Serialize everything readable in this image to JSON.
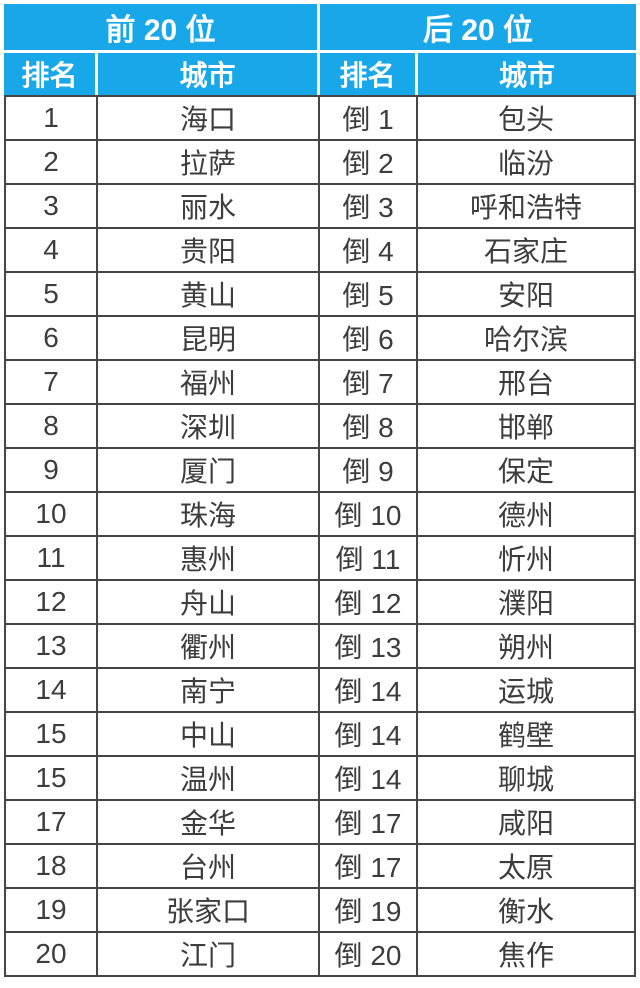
{
  "colors": {
    "header_bg": "#18a8e9",
    "header_text": "#ffffff",
    "body_text": "#3d3d3d",
    "grid_border": "#464646",
    "background": "#ffffff"
  },
  "chart_data": {
    "type": "table",
    "sections": [
      {
        "title": "前 20 位",
        "columns": [
          "排名",
          "城市"
        ],
        "rows": [
          [
            "1",
            "海口"
          ],
          [
            "2",
            "拉萨"
          ],
          [
            "3",
            "丽水"
          ],
          [
            "4",
            "贵阳"
          ],
          [
            "5",
            "黄山"
          ],
          [
            "6",
            "昆明"
          ],
          [
            "7",
            "福州"
          ],
          [
            "8",
            "深圳"
          ],
          [
            "9",
            "厦门"
          ],
          [
            "10",
            "珠海"
          ],
          [
            "11",
            "惠州"
          ],
          [
            "12",
            "舟山"
          ],
          [
            "13",
            "衢州"
          ],
          [
            "14",
            "南宁"
          ],
          [
            "15",
            "中山"
          ],
          [
            "15",
            "温州"
          ],
          [
            "17",
            "金华"
          ],
          [
            "18",
            "台州"
          ],
          [
            "19",
            "张家口"
          ],
          [
            "20",
            "江门"
          ]
        ]
      },
      {
        "title": "后 20 位",
        "columns": [
          "排名",
          "城市"
        ],
        "rows": [
          [
            "倒 1",
            "包头"
          ],
          [
            "倒 2",
            "临汾"
          ],
          [
            "倒 3",
            "呼和浩特"
          ],
          [
            "倒 4",
            "石家庄"
          ],
          [
            "倒 5",
            "安阳"
          ],
          [
            "倒 6",
            "哈尔滨"
          ],
          [
            "倒 7",
            "邢台"
          ],
          [
            "倒 8",
            "邯郸"
          ],
          [
            "倒 9",
            "保定"
          ],
          [
            "倒 10",
            "德州"
          ],
          [
            "倒 11",
            "忻州"
          ],
          [
            "倒 12",
            "濮阳"
          ],
          [
            "倒 13",
            "朔州"
          ],
          [
            "倒 14",
            "运城"
          ],
          [
            "倒 14",
            "鹤壁"
          ],
          [
            "倒 14",
            "聊城"
          ],
          [
            "倒 17",
            "咸阳"
          ],
          [
            "倒 17",
            "太原"
          ],
          [
            "倒 19",
            "衡水"
          ],
          [
            "倒 20",
            "焦作"
          ]
        ]
      }
    ]
  }
}
